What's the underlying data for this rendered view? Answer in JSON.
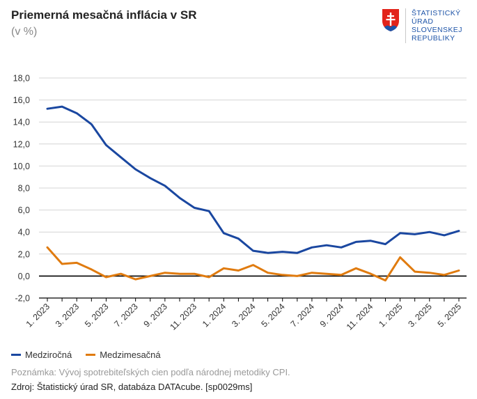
{
  "header": {
    "title": "Priemerná mesačná inflácia v SR",
    "subtitle": "(v %)"
  },
  "logo": {
    "lines": [
      "ŠTATISTICKÝ",
      "ÚRAD",
      "SLOVENSKEJ",
      "REPUBLIKY"
    ],
    "colors": {
      "shield_red": "#e2231a",
      "shield_blue": "#1e54a8",
      "text": "#1e54a8"
    }
  },
  "footer": {
    "note": "Poznámka: Vývoj spotrebiteľských cien podľa národnej metodiky CPI.",
    "source": "Zdroj: Štatistický úrad SR, databáza DATAcube. [sp0029ms]"
  },
  "chart_data": {
    "type": "line",
    "title": "Priemerná mesačná inflácia v SR",
    "ylabel": "",
    "xlabel": "",
    "ylim": [
      -2,
      18
    ],
    "yticks": [
      "18,0",
      "16,0",
      "14,0",
      "12,0",
      "10,0",
      "8,0",
      "6,0",
      "4,0",
      "2,0",
      "0,0",
      "-2,0"
    ],
    "ytick_values": [
      18,
      16,
      14,
      12,
      10,
      8,
      6,
      4,
      2,
      0,
      -2
    ],
    "grid": true,
    "legend_position": "bottom-left",
    "categories": [
      "1. 2023",
      "2. 2023",
      "3. 2023",
      "4. 2023",
      "5. 2023",
      "6. 2023",
      "7. 2023",
      "8. 2023",
      "9. 2023",
      "10. 2023",
      "11. 2023",
      "12. 2023",
      "1. 2024",
      "2. 2024",
      "3. 2024",
      "4. 2024",
      "5. 2024",
      "6. 2024",
      "7. 2024",
      "8. 2024",
      "9. 2024",
      "10. 2024",
      "11. 2024",
      "12. 2024",
      "1. 2025",
      "2. 2025",
      "3. 2025",
      "4. 2025",
      "5. 2025"
    ],
    "xtick_labels": [
      "1. 2023",
      "3. 2023",
      "5. 2023",
      "7. 2023",
      "9. 2023",
      "11. 2023",
      "1. 2024",
      "3. 2024",
      "5. 2024",
      "7. 2024",
      "9. 2024",
      "11. 2024",
      "1. 2025",
      "3. 2025",
      "5. 2025"
    ],
    "series": [
      {
        "name": "Medziročná",
        "color": "#1a47a0",
        "values": [
          15.2,
          15.4,
          14.8,
          13.8,
          11.9,
          10.8,
          9.7,
          8.9,
          8.2,
          7.1,
          6.2,
          5.9,
          3.9,
          3.4,
          2.3,
          2.1,
          2.2,
          2.1,
          2.6,
          2.8,
          2.6,
          3.1,
          3.2,
          2.9,
          3.9,
          3.8,
          4.0,
          3.7,
          4.1
        ]
      },
      {
        "name": "Medzimesačná",
        "color": "#e07b0f",
        "values": [
          2.6,
          1.1,
          1.2,
          0.6,
          -0.1,
          0.2,
          -0.3,
          0.0,
          0.3,
          0.2,
          0.2,
          -0.1,
          0.7,
          0.5,
          1.0,
          0.3,
          0.1,
          0.0,
          0.3,
          0.2,
          0.1,
          0.7,
          0.2,
          -0.4,
          1.7,
          0.4,
          0.3,
          0.1,
          0.5
        ]
      }
    ]
  }
}
